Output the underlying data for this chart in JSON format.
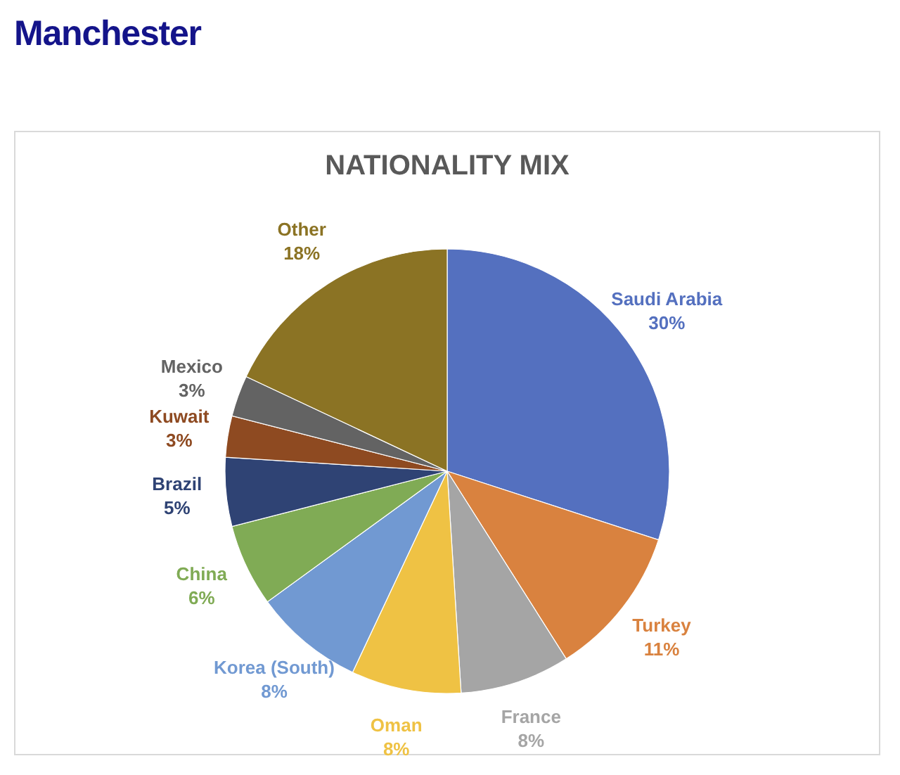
{
  "chart_data": {
    "type": "pie",
    "title": "Manchester",
    "subtitle": "NATIONALITY MIX",
    "categories": [
      "Saudi Arabia",
      "Turkey",
      "France",
      "Oman",
      "Korea (South)",
      "China",
      "Brazil",
      "Kuwait",
      "Mexico",
      "Other"
    ],
    "values": [
      30,
      11,
      8,
      8,
      8,
      6,
      5,
      3,
      3,
      18
    ],
    "colors": [
      "#5470bf",
      "#d9823f",
      "#a5a5a5",
      "#efc244",
      "#7199d2",
      "#80ab55",
      "#2f4374",
      "#8e4a21",
      "#636363",
      "#8b7324"
    ],
    "value_labels": [
      "30%",
      "11%",
      "8%",
      "8%",
      "8%",
      "6%",
      "5%",
      "3%",
      "3%",
      "18%"
    ]
  }
}
